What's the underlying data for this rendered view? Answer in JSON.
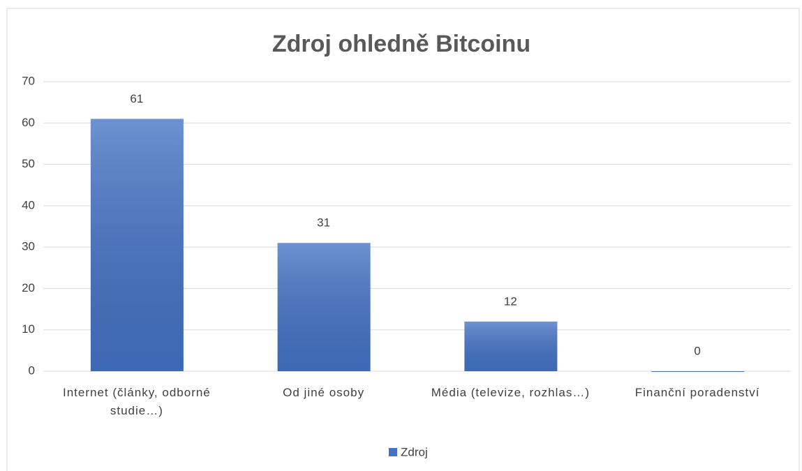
{
  "chart_data": {
    "type": "bar",
    "title": "Zdroj ohledně Bitcoinu",
    "categories": [
      "Internet (články, odborné studie…)",
      "Od jiné osoby",
      "Média (televize, rozhlas…)",
      "Finanční poradenství"
    ],
    "series": [
      {
        "name": "Zdroj",
        "color": "#4472c4",
        "values": [
          61,
          31,
          12,
          0
        ]
      }
    ],
    "ylim": [
      0,
      70
    ],
    "yticks": [
      0,
      10,
      20,
      30,
      40,
      50,
      60,
      70
    ],
    "grid": true,
    "legend": "bottom"
  }
}
